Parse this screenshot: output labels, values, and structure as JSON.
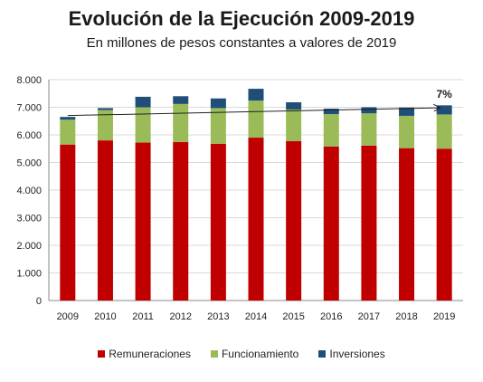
{
  "title": "Evolución de la Ejecución 2009-2019",
  "subtitle": "En millones de pesos constantes a valores de 2019",
  "chart_data": {
    "type": "bar",
    "stacked": true,
    "categories": [
      "2009",
      "2010",
      "2011",
      "2012",
      "2013",
      "2014",
      "2015",
      "2016",
      "2017",
      "2018",
      "2019"
    ],
    "series": [
      {
        "name": "Remuneraciones",
        "color": "#c00000",
        "values": [
          5650,
          5800,
          5720,
          5740,
          5680,
          5900,
          5770,
          5580,
          5610,
          5520,
          5500
        ]
      },
      {
        "name": "Funcionamiento",
        "color": "#9bbb59",
        "values": [
          900,
          1100,
          1280,
          1380,
          1290,
          1340,
          1150,
          1170,
          1170,
          1170,
          1240
        ]
      },
      {
        "name": "Inversiones",
        "color": "#1f4e79",
        "values": [
          100,
          70,
          380,
          280,
          350,
          430,
          260,
          200,
          220,
          300,
          330
        ]
      }
    ],
    "ylim": [
      0,
      8000
    ],
    "yticks": [
      "0",
      "1.000",
      "2.000",
      "3.000",
      "4.000",
      "5.000",
      "6.000",
      "7.000",
      "8.000"
    ],
    "ytick_values": [
      0,
      1000,
      2000,
      3000,
      4000,
      5000,
      6000,
      7000,
      8000
    ],
    "grid": true,
    "legend_position": "bottom",
    "trend": {
      "from": 6700,
      "to": 6980,
      "arrow": true
    },
    "annotation": {
      "text": "7%",
      "category": "2019"
    }
  }
}
